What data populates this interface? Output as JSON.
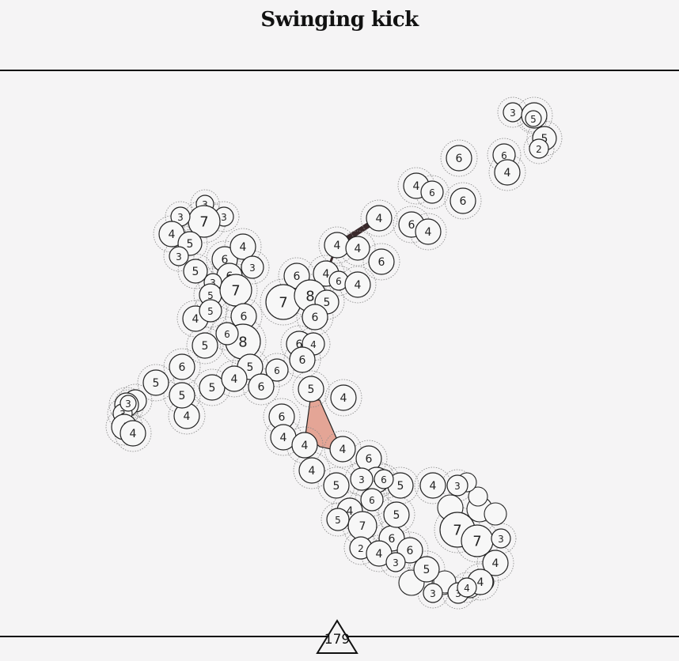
{
  "header": {
    "title": "Swinging kick"
  },
  "level": {
    "number": "179"
  },
  "colors": {
    "background": "#f5f4f5",
    "node_fill": "#f7f7f7",
    "node_stroke": "#222222",
    "halo_stroke": "#8a8a8a",
    "link_dark": "#3a2a2c",
    "highlight_fill": "#e4a596"
  },
  "nodes": [
    {
      "v": "3"
    },
    {
      "v": "3"
    },
    {
      "v": "5"
    },
    {
      "v": "5"
    },
    {
      "v": "2"
    },
    {
      "v": "6"
    },
    {
      "v": "6"
    },
    {
      "v": "4"
    },
    {
      "v": "4"
    },
    {
      "v": "6"
    },
    {
      "v": "6"
    },
    {
      "v": "6"
    },
    {
      "v": "4"
    },
    {
      "v": "4"
    },
    {
      "v": "4"
    },
    {
      "v": "4"
    },
    {
      "v": "6"
    },
    {
      "v": "3"
    },
    {
      "v": "3"
    },
    {
      "v": "7"
    },
    {
      "v": "3"
    },
    {
      "v": "4"
    },
    {
      "v": "5"
    },
    {
      "v": "3"
    },
    {
      "v": "5"
    },
    {
      "v": "6"
    },
    {
      "v": "4"
    },
    {
      "v": "3"
    },
    {
      "v": "6"
    },
    {
      "v": "3"
    },
    {
      "v": "5"
    },
    {
      "v": "7"
    },
    {
      "v": "6"
    },
    {
      "v": "4"
    },
    {
      "v": "6"
    },
    {
      "v": "7"
    },
    {
      "v": "8"
    },
    {
      "v": "4"
    },
    {
      "v": "5"
    },
    {
      "v": "6"
    },
    {
      "v": "4"
    },
    {
      "v": "6"
    },
    {
      "v": "5"
    },
    {
      "v": "8"
    },
    {
      "v": "6"
    },
    {
      "v": "6"
    },
    {
      "v": "4"
    },
    {
      "v": "6"
    },
    {
      "v": "6"
    },
    {
      "v": "5"
    },
    {
      "v": "5"
    },
    {
      "v": "6"
    },
    {
      "v": "5"
    },
    {
      "v": "6"
    },
    {
      "v": "4"
    },
    {
      "v": "5"
    },
    {
      "v": "4"
    },
    {
      "v": "5"
    },
    {
      "v": "3"
    },
    {
      "v": "3"
    },
    {
      "v": "4"
    },
    {
      "v": "4"
    },
    {
      "v": "5"
    },
    {
      "v": "4"
    },
    {
      "v": "6"
    },
    {
      "v": "4"
    },
    {
      "v": "4"
    },
    {
      "v": "4"
    },
    {
      "v": "4"
    },
    {
      "v": "5"
    },
    {
      "v": "6"
    },
    {
      "v": "4"
    },
    {
      "v": "5"
    },
    {
      "v": "4"
    },
    {
      "v": "3"
    },
    {
      "v": "6"
    },
    {
      "v": "4"
    },
    {
      "v": "5"
    },
    {
      "v": "5"
    },
    {
      "v": "6"
    },
    {
      "v": "7"
    },
    {
      "v": "4"
    },
    {
      "v": "3"
    },
    {
      "v": "7"
    },
    {
      "v": "2"
    },
    {
      "v": "6"
    },
    {
      "v": "4"
    },
    {
      "v": "6"
    },
    {
      "v": "3"
    },
    {
      "v": "5"
    },
    {
      "v": "4"
    },
    {
      "v": "7"
    },
    {
      "v": "3"
    },
    {
      "v": "5"
    },
    {
      "v": "3"
    },
    {
      "v": "3"
    },
    {
      "v": "4"
    },
    {
      "v": "4"
    }
  ]
}
